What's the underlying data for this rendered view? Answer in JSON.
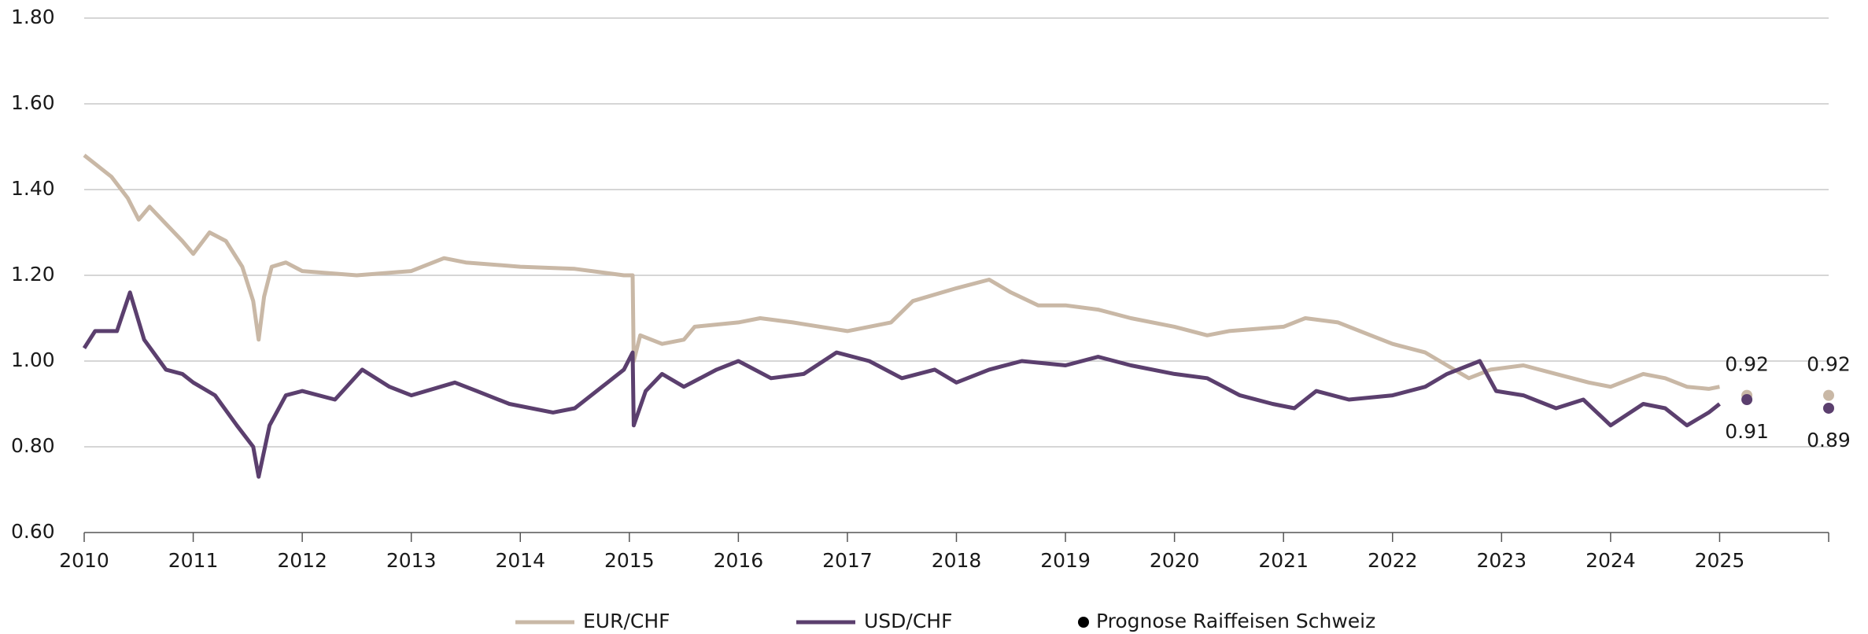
{
  "chart_data": {
    "type": "line",
    "xlim": [
      2010,
      2026
    ],
    "xticks": [
      2010,
      2011,
      2012,
      2013,
      2014,
      2015,
      2016,
      2017,
      2018,
      2019,
      2020,
      2021,
      2022,
      2023,
      2024,
      2025
    ],
    "ylim": [
      0.6,
      1.8
    ],
    "yticks": [
      {
        "value": 0.6,
        "label": "0.60"
      },
      {
        "value": 0.8,
        "label": "0.80"
      },
      {
        "value": 1.0,
        "label": "1.00"
      },
      {
        "value": 1.2,
        "label": "1.20"
      },
      {
        "value": 1.4,
        "label": "1.40"
      },
      {
        "value": 1.6,
        "label": "1.60"
      },
      {
        "value": 1.8,
        "label": "1.80"
      }
    ],
    "grid": true,
    "series": [
      {
        "name": "EUR/CHF",
        "color": "#c9b8a6",
        "x": [
          2010.0,
          2010.1,
          2010.25,
          2010.4,
          2010.5,
          2010.6,
          2010.75,
          2010.9,
          2011.0,
          2011.15,
          2011.3,
          2011.45,
          2011.55,
          2011.6,
          2011.65,
          2011.72,
          2011.85,
          2012.0,
          2012.5,
          2013.0,
          2013.3,
          2013.5,
          2014.0,
          2014.5,
          2014.95,
          2015.03,
          2015.04,
          2015.1,
          2015.3,
          2015.5,
          2015.6,
          2016.0,
          2016.2,
          2016.5,
          2017.0,
          2017.4,
          2017.6,
          2018.0,
          2018.3,
          2018.5,
          2018.75,
          2019.0,
          2019.3,
          2019.6,
          2020.0,
          2020.3,
          2020.5,
          2021.0,
          2021.2,
          2021.5,
          2021.8,
          2022.0,
          2022.3,
          2022.5,
          2022.7,
          2022.9,
          2023.2,
          2023.5,
          2023.8,
          2024.0,
          2024.3,
          2024.5,
          2024.7,
          2024.9,
          2025.0
        ],
        "values": [
          1.48,
          1.46,
          1.43,
          1.38,
          1.33,
          1.36,
          1.32,
          1.28,
          1.25,
          1.3,
          1.28,
          1.22,
          1.14,
          1.05,
          1.15,
          1.22,
          1.23,
          1.21,
          1.2,
          1.21,
          1.24,
          1.23,
          1.22,
          1.215,
          1.2,
          1.2,
          1.0,
          1.06,
          1.04,
          1.05,
          1.08,
          1.09,
          1.1,
          1.09,
          1.07,
          1.09,
          1.14,
          1.17,
          1.19,
          1.16,
          1.13,
          1.13,
          1.12,
          1.1,
          1.08,
          1.06,
          1.07,
          1.08,
          1.1,
          1.09,
          1.06,
          1.04,
          1.02,
          0.99,
          0.96,
          0.98,
          0.99,
          0.97,
          0.95,
          0.94,
          0.97,
          0.96,
          0.94,
          0.935,
          0.94
        ]
      },
      {
        "name": "USD/CHF",
        "color": "#5b3f6e",
        "x": [
          2010.0,
          2010.1,
          2010.3,
          2010.42,
          2010.55,
          2010.75,
          2010.9,
          2011.0,
          2011.2,
          2011.4,
          2011.55,
          2011.6,
          2011.7,
          2011.85,
          2012.0,
          2012.3,
          2012.55,
          2012.8,
          2013.0,
          2013.4,
          2013.6,
          2013.9,
          2014.3,
          2014.5,
          2014.8,
          2014.95,
          2015.03,
          2015.04,
          2015.15,
          2015.3,
          2015.5,
          2015.8,
          2016.0,
          2016.3,
          2016.6,
          2016.9,
          2017.2,
          2017.5,
          2017.8,
          2018.0,
          2018.3,
          2018.6,
          2019.0,
          2019.3,
          2019.6,
          2020.0,
          2020.3,
          2020.6,
          2020.9,
          2021.1,
          2021.3,
          2021.6,
          2022.0,
          2022.3,
          2022.5,
          2022.8,
          2022.95,
          2023.2,
          2023.5,
          2023.75,
          2024.0,
          2024.3,
          2024.5,
          2024.7,
          2024.9,
          2025.0
        ],
        "values": [
          1.03,
          1.07,
          1.07,
          1.16,
          1.05,
          0.98,
          0.97,
          0.95,
          0.92,
          0.85,
          0.8,
          0.73,
          0.85,
          0.92,
          0.93,
          0.91,
          0.98,
          0.94,
          0.92,
          0.95,
          0.93,
          0.9,
          0.88,
          0.89,
          0.95,
          0.98,
          1.02,
          0.85,
          0.93,
          0.97,
          0.94,
          0.98,
          1.0,
          0.96,
          0.97,
          1.02,
          1.0,
          0.96,
          0.98,
          0.95,
          0.98,
          1.0,
          0.99,
          1.01,
          0.99,
          0.97,
          0.96,
          0.92,
          0.9,
          0.89,
          0.93,
          0.91,
          0.92,
          0.94,
          0.97,
          1.0,
          0.93,
          0.92,
          0.89,
          0.91,
          0.85,
          0.9,
          0.89,
          0.85,
          0.88,
          0.9
        ]
      }
    ],
    "forecast": {
      "name": "Prognose Raiffeisen Schweiz",
      "color": "#000000",
      "x": [
        2025.25,
        2026
      ],
      "series": [
        {
          "color": "#c9b8a6",
          "values": [
            0.92,
            0.92
          ]
        },
        {
          "color": "#5b3f6e",
          "values": [
            0.91,
            0.89
          ]
        }
      ]
    }
  }
}
